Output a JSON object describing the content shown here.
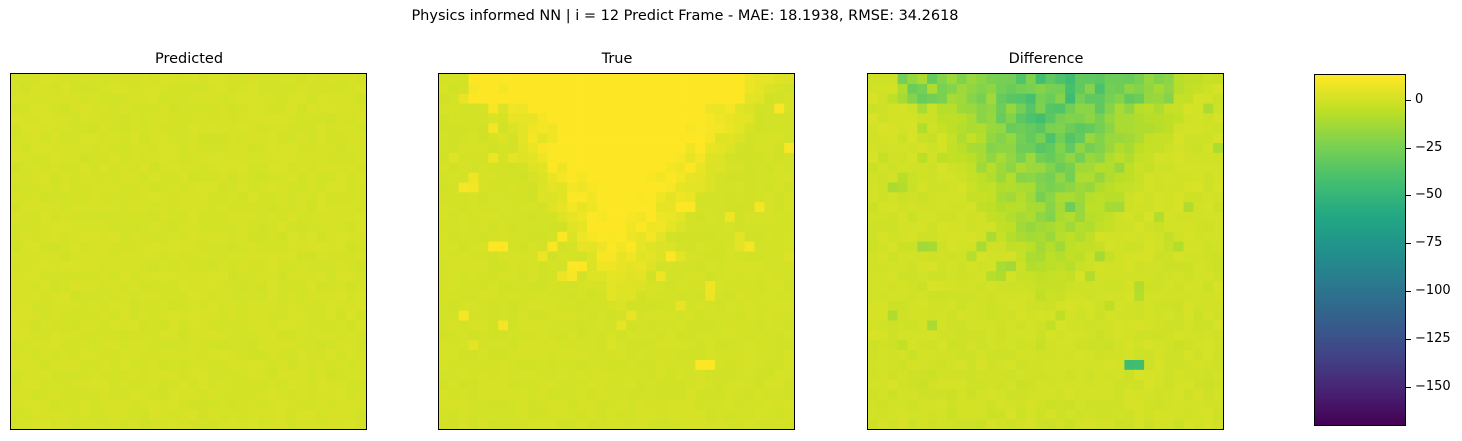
{
  "suptitle": "Physics informed NN | i = 12 Predict Frame - MAE: 18.1938, RMSE: 34.2618",
  "chart_data": {
    "type": "heatmap",
    "grid": [
      36,
      36
    ],
    "colormap": "viridis",
    "colorbar": {
      "range": [
        -170,
        13
      ],
      "ticks": [
        0,
        -25,
        -50,
        -75,
        -100,
        -125,
        -150
      ],
      "tick_labels": [
        "0",
        "−25",
        "−50",
        "−75",
        "−100",
        "−125",
        "−150"
      ]
    },
    "panels": [
      {
        "title": "Predicted",
        "value_range": [
          0,
          3
        ],
        "typical_value": 1
      },
      {
        "title": "True",
        "value_range": [
          0,
          45
        ],
        "features": [
          "plume spreading downward from the top center",
          "isolated speck left of center",
          "isolated speck near lower right"
        ]
      },
      {
        "title": "Difference",
        "value_range": [
          -45,
          0
        ],
        "features": [
          "negative plume from the top center",
          "isolated speck left of center",
          "isolated speck near lower right"
        ]
      }
    ]
  }
}
